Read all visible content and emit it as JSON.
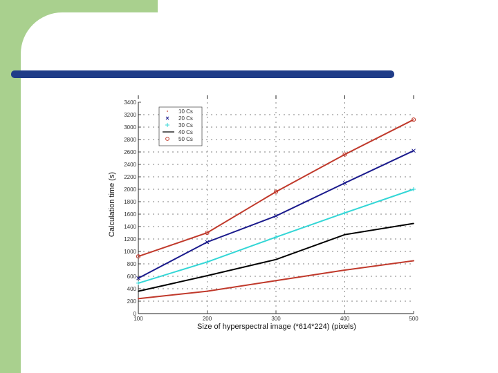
{
  "theme": {
    "decor_green": "#a9d08e",
    "bar_blue": "#1f3c88"
  },
  "chart_data": {
    "type": "line",
    "title": "",
    "xlabel": "Size of hyperspectral image (*614*224) (pixels)",
    "ylabel": "Calculation time (s)",
    "x_tick_labels": [
      "100",
      "200",
      "300",
      "400",
      "500"
    ],
    "y_tick_labels": [
      "0",
      "200",
      "400",
      "600",
      "800",
      "1000",
      "1200",
      "1400",
      "1600",
      "1800",
      "2000",
      "2200",
      "2400",
      "2600",
      "2800",
      "3000",
      "3200",
      "3400"
    ],
    "x": [
      100,
      200,
      300,
      400,
      500
    ],
    "xlim": [
      100,
      500
    ],
    "ylim": [
      0,
      3400
    ],
    "grid": true,
    "legend_position": "top-left",
    "series": [
      {
        "name": "10 Cs",
        "values": [
          240,
          360,
          530,
          700,
          850
        ],
        "color": "#c0392b",
        "marker": "."
      },
      {
        "name": "20 Cs",
        "values": [
          570,
          1150,
          1570,
          2100,
          2620
        ],
        "color": "#1a1a8c",
        "marker": "x"
      },
      {
        "name": "30 Cs",
        "values": [
          490,
          830,
          1230,
          1620,
          2000
        ],
        "color": "#33d6d6",
        "marker": "+"
      },
      {
        "name": "40 Cs",
        "values": [
          360,
          610,
          870,
          1270,
          1450
        ],
        "color": "#000000",
        "marker": "-"
      },
      {
        "name": "50 Cs",
        "values": [
          920,
          1300,
          1960,
          2560,
          3120
        ],
        "color": "#c0392b",
        "marker": "o"
      }
    ]
  }
}
